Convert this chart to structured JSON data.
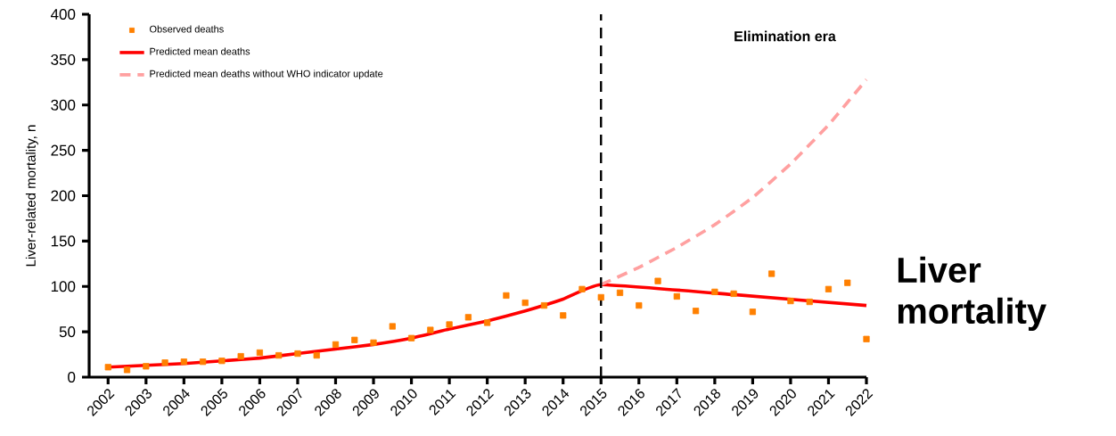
{
  "chart_data": {
    "type": "line",
    "ylabel": "Liver-related mortality, n",
    "xlim": [
      2001.5,
      2022
    ],
    "xticks": [
      2002,
      2003,
      2004,
      2005,
      2006,
      2007,
      2008,
      2009,
      2010,
      2011,
      2012,
      2013,
      2014,
      2015,
      2016,
      2017,
      2018,
      2019,
      2020,
      2021,
      2022
    ],
    "ylim": [
      0,
      400
    ],
    "yticks": [
      0,
      50,
      100,
      150,
      200,
      250,
      300,
      350,
      400
    ],
    "legend": "top left",
    "annotations": [
      "Elimination era",
      "Liver mortality"
    ],
    "ref_lines": [
      {
        "axis": "x",
        "value": 2015,
        "color": "#000000",
        "line_style": "dashed"
      }
    ],
    "series": [
      {
        "name": "Observed deaths",
        "type": "scatter",
        "marker": "square",
        "color": "#ff8000",
        "x": [
          2002,
          2002.5,
          2003,
          2003.5,
          2004,
          2004.5,
          2005,
          2005.5,
          2006,
          2006.5,
          2007,
          2007.5,
          2008,
          2008.5,
          2009,
          2009.5,
          2010,
          2010.5,
          2011,
          2011.5,
          2012,
          2012.5,
          2013,
          2013.5,
          2014,
          2014.5,
          2015,
          2015.5,
          2016,
          2016.5,
          2017,
          2017.5,
          2018,
          2018.5,
          2019,
          2019.5,
          2020,
          2020.5,
          2021,
          2021.5,
          2022
        ],
        "values": [
          11,
          8,
          12,
          16,
          17,
          17,
          18,
          23,
          27,
          24,
          26,
          24,
          36,
          41,
          38,
          56,
          43,
          52,
          58,
          66,
          60,
          90,
          82,
          79,
          68,
          97,
          88,
          93,
          79,
          106,
          89,
          73,
          94,
          92,
          72,
          114,
          84,
          83,
          97,
          104,
          42
        ]
      },
      {
        "name": "Predicted mean deaths",
        "marker": "none",
        "line_style": "solid",
        "color": "#ff0000",
        "x": [
          2002,
          2003,
          2004,
          2005,
          2006,
          2007,
          2008,
          2009,
          2010,
          2011,
          2012,
          2013,
          2014,
          2015,
          2018.5,
          2022
        ],
        "values": [
          11,
          13,
          15,
          18,
          21,
          26,
          31,
          36,
          43,
          53,
          62,
          73,
          86,
          102,
          91,
          79
        ]
      },
      {
        "name": "Predicted mean deaths without WHO indicator update",
        "marker": "none",
        "line_style": "dashed",
        "color": "#ffa0a0",
        "x": [
          2015,
          2016,
          2017,
          2018,
          2019,
          2020,
          2021,
          2022
        ],
        "values": [
          102,
          121,
          143,
          168,
          198,
          235,
          278,
          328
        ]
      }
    ]
  }
}
